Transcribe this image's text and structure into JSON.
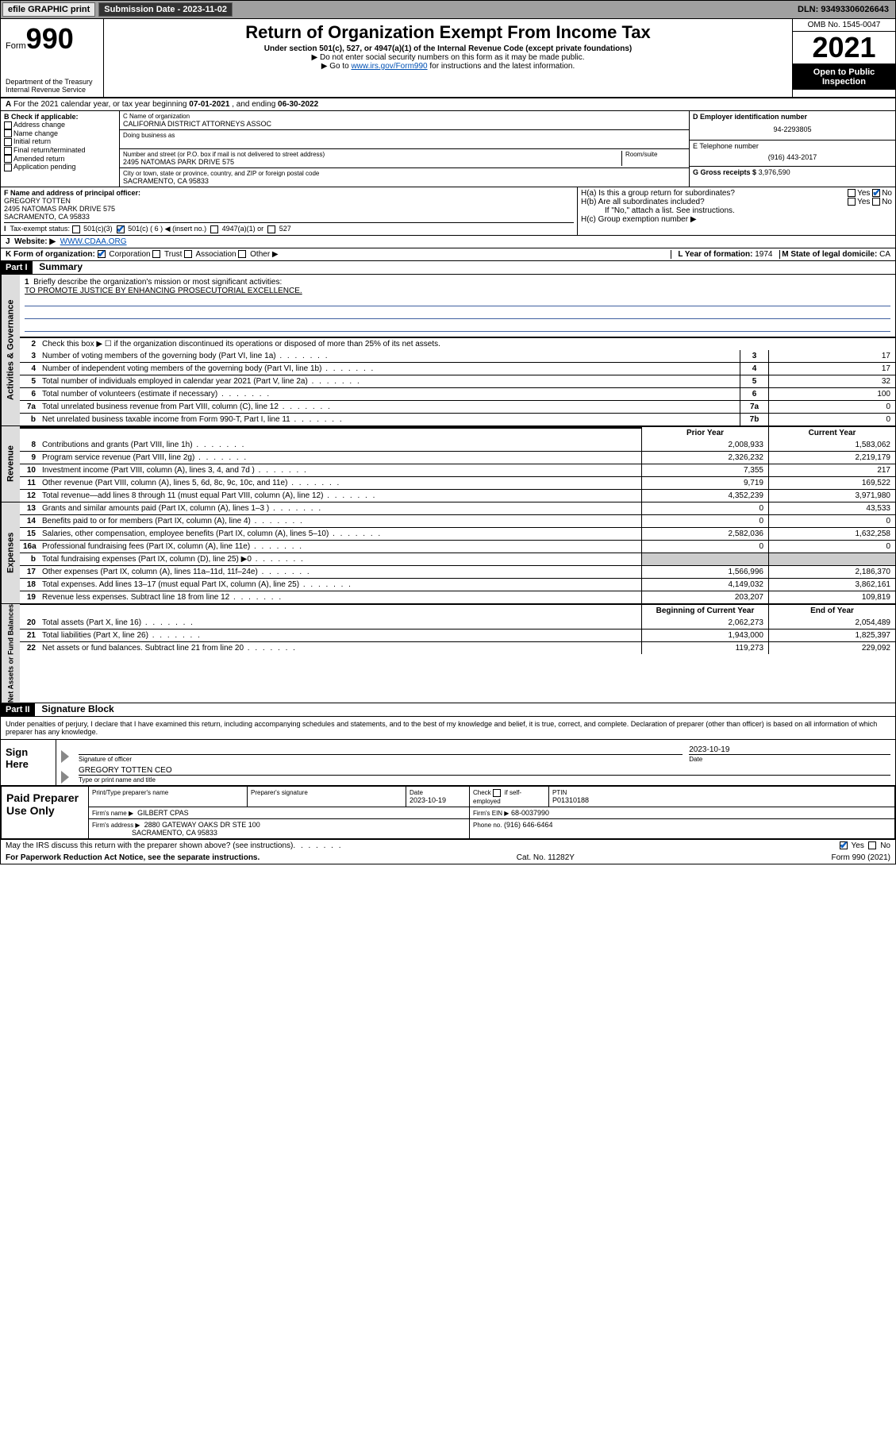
{
  "topbar": {
    "efile": "efile GRAPHIC print",
    "sub_label": "Submission Date - 2023-11-02",
    "dln": "DLN: 93493306026643"
  },
  "header": {
    "form_prefix": "Form",
    "form_num": "990",
    "dept": "Department of the Treasury",
    "irs": "Internal Revenue Service",
    "title": "Return of Organization Exempt From Income Tax",
    "sub": "Under section 501(c), 527, or 4947(a)(1) of the Internal Revenue Code (except private foundations)",
    "note1": "▶ Do not enter social security numbers on this form as it may be made public.",
    "note2_a": "▶ Go to ",
    "note2_link": "www.irs.gov/Form990",
    "note2_b": " for instructions and the latest information.",
    "omb": "OMB No. 1545-0047",
    "year": "2021",
    "inspect": "Open to Public Inspection"
  },
  "lineA": {
    "text_a": "For the 2021 calendar year, or tax year beginning ",
    "begin": "07-01-2021",
    "text_b": " , and ending ",
    "end": "06-30-2022"
  },
  "b": {
    "label": "B Check if applicable:",
    "opts": [
      "Address change",
      "Name change",
      "Initial return",
      "Final return/terminated",
      "Amended return",
      "Application pending"
    ]
  },
  "c": {
    "name_label": "C Name of organization",
    "name": "CALIFORNIA DISTRICT ATTORNEYS ASSOC",
    "dba_label": "Doing business as",
    "street_label": "Number and street (or P.O. box if mail is not delivered to street address)",
    "room_label": "Room/suite",
    "street": "2495 NATOMAS PARK DRIVE 575",
    "city_label": "City or town, state or province, country, and ZIP or foreign postal code",
    "city": "SACRAMENTO, CA  95833"
  },
  "d": {
    "ein_label": "D Employer identification number",
    "ein": "94-2293805",
    "tel_label": "E Telephone number",
    "tel": "(916) 443-2017",
    "gross_label": "G Gross receipts $",
    "gross": "3,976,590"
  },
  "f": {
    "label": "F Name and address of principal officer:",
    "name": "GREGORY TOTTEN",
    "addr1": "2495 NATOMAS PARK DRIVE 575",
    "addr2": "SACRAMENTO, CA  95833"
  },
  "h": {
    "a_label": "H(a)  Is this a group return for subordinates?",
    "b_label": "H(b)  Are all subordinates included?",
    "b_note": "If \"No,\" attach a list. See instructions.",
    "c_label": "H(c)  Group exemption number ▶",
    "yes": "Yes",
    "no": "No"
  },
  "i": {
    "label": "Tax-exempt status:",
    "o1": "501(c)(3)",
    "o2": "501(c) ( 6 ) ◀ (insert no.)",
    "o3": "4947(a)(1) or",
    "o4": "527"
  },
  "j": {
    "label": "Website: ▶",
    "val": "WWW.CDAA.ORG"
  },
  "k": {
    "label": "K Form of organization:",
    "opts": [
      "Corporation",
      "Trust",
      "Association",
      "Other ▶"
    ],
    "l_label": "L Year of formation:",
    "l_val": "1974",
    "m_label": "M State of legal domicile:",
    "m_val": "CA"
  },
  "part1": {
    "hdr": "Part I",
    "title": "Summary"
  },
  "gov": {
    "tab": "Activities & Governance",
    "l1_num": "1",
    "l1": "Briefly describe the organization's mission or most significant activities:",
    "mission": "TO PROMOTE JUSTICE BY ENHANCING PROSECUTORIAL EXCELLENCE.",
    "l2_num": "2",
    "l2": "Check this box ▶ ☐ if the organization discontinued its operations or disposed of more than 25% of its net assets.",
    "rows": [
      {
        "n": "3",
        "d": "Number of voting members of the governing body (Part VI, line 1a)",
        "box": "3",
        "v": "17"
      },
      {
        "n": "4",
        "d": "Number of independent voting members of the governing body (Part VI, line 1b)",
        "box": "4",
        "v": "17"
      },
      {
        "n": "5",
        "d": "Total number of individuals employed in calendar year 2021 (Part V, line 2a)",
        "box": "5",
        "v": "32"
      },
      {
        "n": "6",
        "d": "Total number of volunteers (estimate if necessary)",
        "box": "6",
        "v": "100"
      },
      {
        "n": "7a",
        "d": "Total unrelated business revenue from Part VIII, column (C), line 12",
        "box": "7a",
        "v": "0"
      },
      {
        "n": "b",
        "d": "Net unrelated business taxable income from Form 990-T, Part I, line 11",
        "box": "7b",
        "v": "0"
      }
    ]
  },
  "colhdr": {
    "prior": "Prior Year",
    "current": "Current Year",
    "boy": "Beginning of Current Year",
    "eoy": "End of Year"
  },
  "rev": {
    "tab": "Revenue",
    "rows": [
      {
        "n": "8",
        "d": "Contributions and grants (Part VIII, line 1h)",
        "p": "2,008,933",
        "c": "1,583,062"
      },
      {
        "n": "9",
        "d": "Program service revenue (Part VIII, line 2g)",
        "p": "2,326,232",
        "c": "2,219,179"
      },
      {
        "n": "10",
        "d": "Investment income (Part VIII, column (A), lines 3, 4, and 7d )",
        "p": "7,355",
        "c": "217"
      },
      {
        "n": "11",
        "d": "Other revenue (Part VIII, column (A), lines 5, 6d, 8c, 9c, 10c, and 11e)",
        "p": "9,719",
        "c": "169,522"
      },
      {
        "n": "12",
        "d": "Total revenue—add lines 8 through 11 (must equal Part VIII, column (A), line 12)",
        "p": "4,352,239",
        "c": "3,971,980"
      }
    ]
  },
  "exp": {
    "tab": "Expenses",
    "rows": [
      {
        "n": "13",
        "d": "Grants and similar amounts paid (Part IX, column (A), lines 1–3 )",
        "p": "0",
        "c": "43,533"
      },
      {
        "n": "14",
        "d": "Benefits paid to or for members (Part IX, column (A), line 4)",
        "p": "0",
        "c": "0"
      },
      {
        "n": "15",
        "d": "Salaries, other compensation, employee benefits (Part IX, column (A), lines 5–10)",
        "p": "2,582,036",
        "c": "1,632,258"
      },
      {
        "n": "16a",
        "d": "Professional fundraising fees (Part IX, column (A), line 11e)",
        "p": "0",
        "c": "0"
      },
      {
        "n": "b",
        "d": "Total fundraising expenses (Part IX, column (D), line 25) ▶0",
        "p": "",
        "c": "",
        "shade": true
      },
      {
        "n": "17",
        "d": "Other expenses (Part IX, column (A), lines 11a–11d, 11f–24e)",
        "p": "1,566,996",
        "c": "2,186,370"
      },
      {
        "n": "18",
        "d": "Total expenses. Add lines 13–17 (must equal Part IX, column (A), line 25)",
        "p": "4,149,032",
        "c": "3,862,161"
      },
      {
        "n": "19",
        "d": "Revenue less expenses. Subtract line 18 from line 12",
        "p": "203,207",
        "c": "109,819"
      }
    ]
  },
  "net": {
    "tab": "Net Assets or Fund Balances",
    "rows": [
      {
        "n": "20",
        "d": "Total assets (Part X, line 16)",
        "p": "2,062,273",
        "c": "2,054,489"
      },
      {
        "n": "21",
        "d": "Total liabilities (Part X, line 26)",
        "p": "1,943,000",
        "c": "1,825,397"
      },
      {
        "n": "22",
        "d": "Net assets or fund balances. Subtract line 21 from line 20",
        "p": "119,273",
        "c": "229,092"
      }
    ]
  },
  "part2": {
    "hdr": "Part II",
    "title": "Signature Block"
  },
  "sig": {
    "decl": "Under penalties of perjury, I declare that I have examined this return, including accompanying schedules and statements, and to the best of my knowledge and belief, it is true, correct, and complete. Declaration of preparer (other than officer) is based on all information of which preparer has any knowledge.",
    "here": "Sign Here",
    "sig_of": "Signature of officer",
    "date": "2023-10-19",
    "date_lbl": "Date",
    "name": "GREGORY TOTTEN CEO",
    "name_lbl": "Type or print name and title"
  },
  "prep": {
    "left": "Paid Preparer Use Only",
    "h1": "Print/Type preparer's name",
    "h2": "Preparer's signature",
    "h3": "Date",
    "h3v": "2023-10-19",
    "h4a": "Check",
    "h4b": "if self-employed",
    "h5": "PTIN",
    "h5v": "P01310188",
    "firm_lbl": "Firm's name    ▶",
    "firm": "GILBERT CPAS",
    "ein_lbl": "Firm's EIN ▶",
    "ein": "68-0037990",
    "addr_lbl": "Firm's address ▶",
    "addr1": "2880 GATEWAY OAKS DR STE 100",
    "addr2": "SACRAMENTO, CA 95833",
    "phone_lbl": "Phone no.",
    "phone": "(916) 646-6464"
  },
  "footer": {
    "discuss": "May the IRS discuss this return with the preparer shown above? (see instructions)",
    "yes": "Yes",
    "no": "No",
    "pra": "For Paperwork Reduction Act Notice, see the separate instructions.",
    "cat": "Cat. No. 11282Y",
    "form": "Form 990 (2021)"
  }
}
